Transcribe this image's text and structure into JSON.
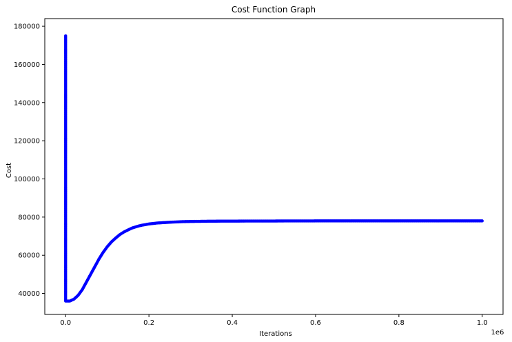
{
  "chart_data": {
    "type": "scatter",
    "title": "Cost Function Graph",
    "xlabel": "Iterations",
    "ylabel": "Cost",
    "x_offset_label": "1e6",
    "xlim": [
      -0.05,
      1.05
    ],
    "ylim": [
      29000,
      184000
    ],
    "x_ticks": [
      0.0,
      0.2,
      0.4,
      0.6,
      0.8,
      1.0
    ],
    "x_tick_labels": [
      "0.0",
      "0.2",
      "0.4",
      "0.6",
      "0.8",
      "1.0"
    ],
    "y_ticks": [
      40000,
      60000,
      80000,
      100000,
      120000,
      140000,
      160000,
      180000
    ],
    "y_tick_labels": [
      "40000",
      "60000",
      "80000",
      "100000",
      "120000",
      "140000",
      "160000",
      "180000"
    ],
    "marker_color": "#0000ff",
    "grid": false,
    "series": [
      {
        "points": [
          [
            0.0,
            175000
          ],
          [
            0.0,
            110000
          ],
          [
            0.0,
            80000
          ],
          [
            0.0,
            60000
          ],
          [
            0.0,
            45000
          ],
          [
            0.0,
            36000
          ],
          [
            0.01,
            36000
          ],
          [
            0.02,
            37000
          ],
          [
            0.03,
            39000
          ],
          [
            0.04,
            42000
          ],
          [
            0.05,
            46000
          ],
          [
            0.06,
            50000
          ],
          [
            0.07,
            54000
          ],
          [
            0.08,
            58000
          ],
          [
            0.09,
            61500
          ],
          [
            0.1,
            64500
          ],
          [
            0.11,
            67000
          ],
          [
            0.12,
            69000
          ],
          [
            0.13,
            70800
          ],
          [
            0.14,
            72200
          ],
          [
            0.15,
            73300
          ],
          [
            0.16,
            74300
          ],
          [
            0.17,
            75000
          ],
          [
            0.18,
            75600
          ],
          [
            0.19,
            76000
          ],
          [
            0.2,
            76400
          ],
          [
            0.22,
            76900
          ],
          [
            0.25,
            77300
          ],
          [
            0.28,
            77600
          ],
          [
            0.3,
            77700
          ],
          [
            0.35,
            77850
          ],
          [
            0.4,
            77900
          ],
          [
            0.5,
            77950
          ],
          [
            0.6,
            78000
          ],
          [
            0.7,
            78000
          ],
          [
            0.8,
            78000
          ],
          [
            0.9,
            78000
          ],
          [
            1.0,
            78000
          ]
        ]
      }
    ]
  }
}
